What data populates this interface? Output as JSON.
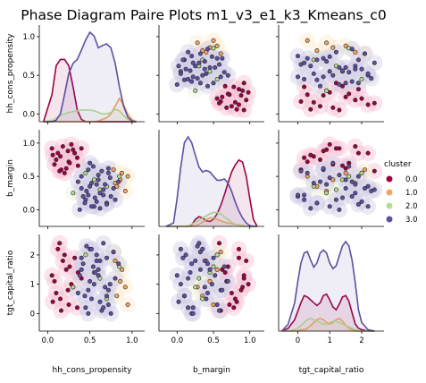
{
  "chart_data": {
    "type": "scatter",
    "title": "Phase Diagram Paire Plots m1_v3_e1_k3_Kmeans_c0",
    "variables": [
      "hh_cons_propensity",
      "b_margin",
      "tgt_capital_ratio"
    ],
    "legend": {
      "title": "cluster",
      "placement": "right"
    },
    "grid": false,
    "clusters": [
      {
        "label": "0.0",
        "color": "#9e0142",
        "light": "#f48fb1"
      },
      {
        "label": "1.0",
        "color": "#f4a460",
        "light": "#fdd9a8"
      },
      {
        "label": "2.0",
        "color": "#b5dc8f",
        "light": "#dcefc5"
      },
      {
        "label": "3.0",
        "color": "#5e4fa2",
        "light": "#aaa4d2"
      }
    ],
    "axes": {
      "hh_cons_propensity": {
        "lim": [
          -0.1,
          1.15
        ],
        "ticks": [
          "0.0",
          "0.5",
          "1.0"
        ],
        "tick_values": [
          0,
          0.5,
          1.0
        ]
      },
      "b_margin": {
        "lim": [
          -0.25,
          1.2
        ],
        "ticks": [
          "0.0",
          "0.5",
          "1.0"
        ],
        "tick_values": [
          0,
          0.5,
          1.0
        ]
      },
      "tgt_capital_ratio": {
        "lim": [
          -0.6,
          2.7
        ],
        "ticks": [
          "0",
          "1",
          "2"
        ],
        "tick_values": [
          0,
          1,
          2
        ]
      }
    },
    "diag_density": {
      "hh_cons_propensity": {
        "x": [
          -0.05,
          0.05,
          0.1,
          0.15,
          0.2,
          0.25,
          0.3,
          0.35,
          0.4,
          0.45,
          0.5,
          0.55,
          0.6,
          0.65,
          0.7,
          0.75,
          0.8,
          0.85,
          0.9,
          0.95,
          1.0,
          1.05
        ],
        "series": [
          {
            "cluster": "0.0",
            "values": [
              0.0,
              0.35,
              0.72,
              0.8,
              0.8,
              0.72,
              0.45,
              0.15,
              0.03,
              0.0,
              0.0,
              0.0,
              0.0,
              0.0,
              0.0,
              0.0,
              0.0,
              0.0,
              0.0,
              0.0,
              0.0,
              0.0
            ]
          },
          {
            "cluster": "1.0",
            "values": [
              0.0,
              0.0,
              0.0,
              0.0,
              0.0,
              0.0,
              0.0,
              0.0,
              0.0,
              0.0,
              0.0,
              0.0,
              0.01,
              0.03,
              0.05,
              0.1,
              0.2,
              0.3,
              0.22,
              0.1,
              0.03,
              0.0
            ]
          },
          {
            "cluster": "2.0",
            "values": [
              0.0,
              0.02,
              0.05,
              0.08,
              0.1,
              0.12,
              0.13,
              0.14,
              0.15,
              0.15,
              0.15,
              0.14,
              0.12,
              0.1,
              0.1,
              0.12,
              0.16,
              0.14,
              0.08,
              0.03,
              0.01,
              0.0
            ]
          },
          {
            "cluster": "3.0",
            "values": [
              0.0,
              0.0,
              0.02,
              0.1,
              0.35,
              0.62,
              0.75,
              0.8,
              0.92,
              1.05,
              1.15,
              1.1,
              0.95,
              0.98,
              1.0,
              0.95,
              0.75,
              0.45,
              0.2,
              0.06,
              0.01,
              0.0
            ]
          }
        ]
      },
      "b_margin": {
        "x": [
          -0.15,
          -0.05,
          0.0,
          0.05,
          0.1,
          0.15,
          0.2,
          0.25,
          0.3,
          0.35,
          0.4,
          0.45,
          0.5,
          0.55,
          0.6,
          0.65,
          0.7,
          0.75,
          0.8,
          0.85,
          0.9,
          0.95,
          1.0,
          1.05,
          1.1
        ],
        "series": [
          {
            "cluster": "0.0",
            "values": [
              0,
              0,
              0,
              0,
              0,
              0,
              0.02,
              0.1,
              0.14,
              0.12,
              0.08,
              0.07,
              0.1,
              0.18,
              0.3,
              0.45,
              0.62,
              0.78,
              0.88,
              0.95,
              0.92,
              0.72,
              0.4,
              0.1,
              0
            ]
          },
          {
            "cluster": "1.0",
            "values": [
              0,
              0,
              0,
              0,
              0,
              0,
              0,
              0.01,
              0.03,
              0.06,
              0.1,
              0.12,
              0.12,
              0.1,
              0.08,
              0.06,
              0.05,
              0.04,
              0.03,
              0.02,
              0.01,
              0.0,
              0,
              0,
              0
            ]
          },
          {
            "cluster": "2.0",
            "values": [
              0,
              0,
              0,
              0,
              0,
              0.01,
              0.03,
              0.06,
              0.09,
              0.12,
              0.15,
              0.18,
              0.2,
              0.2,
              0.18,
              0.14,
              0.1,
              0.06,
              0.03,
              0.01,
              0,
              0,
              0,
              0,
              0
            ]
          },
          {
            "cluster": "3.0",
            "values": [
              0,
              0.05,
              0.4,
              0.85,
              1.2,
              1.28,
              1.2,
              1.02,
              0.85,
              0.78,
              0.8,
              0.78,
              0.72,
              0.66,
              0.66,
              0.68,
              0.62,
              0.5,
              0.35,
              0.22,
              0.12,
              0.05,
              0.01,
              0,
              0
            ]
          }
        ]
      },
      "tgt_capital_ratio": {
        "x": [
          -0.5,
          -0.3,
          -0.1,
          0.0,
          0.1,
          0.2,
          0.3,
          0.4,
          0.5,
          0.6,
          0.7,
          0.8,
          0.9,
          1.0,
          1.1,
          1.2,
          1.3,
          1.4,
          1.5,
          1.6,
          1.7,
          1.8,
          1.9,
          2.0,
          2.2,
          2.4
        ],
        "series": [
          {
            "cluster": "0.0",
            "values": [
              0,
              0.02,
              0.08,
              0.14,
              0.2,
              0.25,
              0.24,
              0.22,
              0.2,
              0.18,
              0.2,
              0.25,
              0.26,
              0.22,
              0.17,
              0.15,
              0.19,
              0.24,
              0.25,
              0.21,
              0.13,
              0.05,
              0.02,
              0.01,
              0,
              0
            ]
          },
          {
            "cluster": "1.0",
            "values": [
              0,
              0,
              0,
              0,
              0.01,
              0.01,
              0.02,
              0.04,
              0.06,
              0.08,
              0.09,
              0.08,
              0.06,
              0.05,
              0.06,
              0.08,
              0.09,
              0.07,
              0.04,
              0.02,
              0.01,
              0,
              0,
              0,
              0,
              0
            ]
          },
          {
            "cluster": "2.0",
            "values": [
              0,
              0,
              0.01,
              0.02,
              0.04,
              0.06,
              0.08,
              0.09,
              0.08,
              0.07,
              0.06,
              0.05,
              0.05,
              0.06,
              0.07,
              0.07,
              0.06,
              0.05,
              0.04,
              0.03,
              0.02,
              0.01,
              0,
              0,
              0,
              0
            ]
          },
          {
            "cluster": "3.0",
            "values": [
              0,
              0.05,
              0.2,
              0.35,
              0.48,
              0.55,
              0.56,
              0.5,
              0.45,
              0.48,
              0.55,
              0.57,
              0.55,
              0.48,
              0.44,
              0.46,
              0.53,
              0.6,
              0.63,
              0.6,
              0.5,
              0.34,
              0.15,
              0.06,
              0.01,
              0
            ]
          }
        ]
      }
    },
    "points": [
      [
        0.12,
        0.85,
        2.2,
        0
      ],
      [
        0.18,
        0.95,
        1.8,
        0
      ],
      [
        0.25,
        0.72,
        0.3,
        0
      ],
      [
        0.08,
        0.68,
        1.1,
        0
      ],
      [
        0.3,
        0.9,
        0.9,
        0
      ],
      [
        0.15,
        0.8,
        0.5,
        0
      ],
      [
        0.22,
        0.62,
        1.5,
        0
      ],
      [
        0.05,
        0.92,
        1.3,
        0
      ],
      [
        0.35,
        0.78,
        0.2,
        0
      ],
      [
        0.2,
        0.55,
        2.0,
        0
      ],
      [
        0.28,
        0.98,
        1.0,
        0
      ],
      [
        0.1,
        0.75,
        0.7,
        0
      ],
      [
        0.32,
        0.85,
        1.9,
        0
      ],
      [
        0.16,
        0.6,
        0.1,
        0
      ],
      [
        0.26,
        0.7,
        1.6,
        0
      ],
      [
        0.06,
        0.82,
        0.4,
        0
      ],
      [
        0.4,
        0.92,
        1.2,
        0
      ],
      [
        0.14,
        0.58,
        2.4,
        0
      ],
      [
        0.24,
        0.88,
        0.8,
        0
      ],
      [
        0.36,
        0.66,
        1.4,
        0
      ],
      [
        0.82,
        0.35,
        0.6,
        1
      ],
      [
        0.88,
        0.55,
        1.5,
        1
      ],
      [
        0.92,
        0.28,
        0.9,
        1
      ],
      [
        0.78,
        0.6,
        2.1,
        1
      ],
      [
        0.86,
        0.45,
        1.1,
        1
      ],
      [
        0.95,
        0.5,
        0.3,
        1
      ],
      [
        0.8,
        0.4,
        1.8,
        1
      ],
      [
        0.3,
        0.25,
        0.9,
        2
      ],
      [
        0.55,
        0.45,
        1.4,
        2
      ],
      [
        0.7,
        0.35,
        0.5,
        2
      ],
      [
        0.45,
        0.55,
        2.0,
        2
      ],
      [
        0.62,
        0.3,
        1.2,
        2
      ],
      [
        0.85,
        0.5,
        1.6,
        2
      ],
      [
        0.45,
        0.15,
        0.2,
        3
      ],
      [
        0.55,
        0.05,
        1.0,
        3
      ],
      [
        0.62,
        0.25,
        1.8,
        3
      ],
      [
        0.7,
        0.1,
        0.6,
        3
      ],
      [
        0.5,
        0.35,
        2.2,
        3
      ],
      [
        0.38,
        0.0,
        1.3,
        3
      ],
      [
        0.75,
        0.2,
        0.0,
        3
      ],
      [
        0.6,
        0.45,
        1.5,
        3
      ],
      [
        0.48,
        0.6,
        0.8,
        3
      ],
      [
        0.66,
        0.3,
        2.4,
        3
      ],
      [
        0.42,
        0.2,
        1.7,
        3
      ],
      [
        0.72,
        0.55,
        0.3,
        3
      ],
      [
        0.58,
        0.12,
        2.0,
        3
      ],
      [
        0.52,
        0.4,
        0.5,
        3
      ],
      [
        0.8,
        0.15,
        1.2,
        3
      ],
      [
        0.4,
        0.5,
        1.9,
        3
      ],
      [
        0.68,
        0.38,
        0.9,
        3
      ],
      [
        0.54,
        0.65,
        1.6,
        3
      ],
      [
        0.62,
        0.02,
        0.4,
        3
      ],
      [
        0.46,
        0.28,
        2.3,
        3
      ],
      [
        0.74,
        0.48,
        1.0,
        3
      ],
      [
        0.56,
        0.18,
        1.4,
        3
      ],
      [
        0.64,
        0.58,
        0.1,
        3
      ],
      [
        0.36,
        0.42,
        0.7,
        3
      ],
      [
        0.7,
        0.08,
        1.9,
        3
      ],
      [
        0.5,
        0.7,
        1.1,
        3
      ],
      [
        0.78,
        0.32,
        2.1,
        3
      ],
      [
        0.44,
        0.1,
        0.6,
        3
      ],
      [
        0.6,
        0.52,
        1.3,
        3
      ],
      [
        0.66,
        0.22,
        0.2,
        3
      ],
      [
        0.52,
        0.05,
        2.2,
        3
      ],
      [
        0.84,
        0.42,
        1.7,
        3
      ],
      [
        0.4,
        0.32,
        1.5,
        3
      ],
      [
        0.72,
        0.62,
        0.8,
        3
      ],
      [
        0.58,
        0.38,
        1.8,
        3
      ],
      [
        0.48,
        0.22,
        0.0,
        3
      ]
    ]
  }
}
